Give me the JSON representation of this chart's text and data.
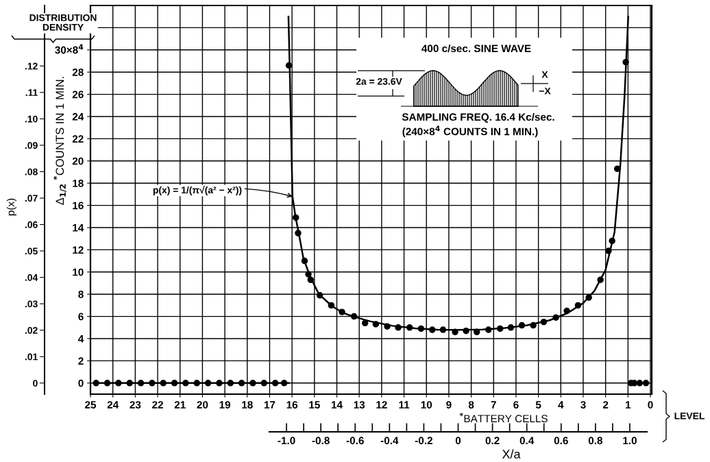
{
  "chart_data": {
    "type": "scatter",
    "xlabel": "$^{*}$BATTERY CELLS",
    "ylabel": "Δ$_{1/2}$ $^{*}$COUNTS IN 1 MIN.",
    "y2label": "p(x)",
    "x2label": "X/a",
    "xlim": [
      25,
      -0.06
    ],
    "xticks": [
      25,
      24,
      23,
      22,
      21,
      20,
      19,
      18,
      17,
      16,
      15,
      14,
      13,
      12,
      11,
      10,
      9,
      8,
      7,
      6,
      5,
      4,
      3,
      2,
      1,
      0
    ],
    "ylim": [
      -1,
      34
    ],
    "yticks": [
      0,
      2,
      4,
      6,
      8,
      10,
      12,
      14,
      16,
      18,
      20,
      22,
      24,
      26,
      28,
      {
        "value": 30,
        "label": "30×8$^{4}$"
      },
      {
        "value": 32,
        "label": null
      }
    ],
    "y2lim": [
      -0.0042,
      0.1429
    ],
    "y2ticks": [
      0,
      {
        "value": 0.01,
        "label": ".01"
      },
      {
        "value": 0.02,
        "label": ".02"
      },
      {
        "value": 0.03,
        "label": ".03"
      },
      {
        "value": 0.04,
        "label": ".04"
      },
      {
        "value": 0.05,
        "label": ".05"
      },
      {
        "value": 0.06,
        "label": ".06"
      },
      {
        "value": 0.07,
        "label": ".07"
      },
      {
        "value": 0.08,
        "label": ".08"
      },
      {
        "value": 0.09,
        "label": ".09"
      },
      {
        "value": 0.1,
        "label": ".10"
      },
      {
        "value": 0.11,
        "label": ".11"
      },
      {
        "value": 0.12,
        "label": ".12"
      }
    ],
    "x2lim": [
      -1.1,
      1.1
    ],
    "x2ticks": [
      {
        "value": -1.0,
        "label": "-1.0"
      },
      {
        "value": -0.8,
        "label": "-0.8"
      },
      {
        "value": -0.6,
        "label": "-0.6"
      },
      {
        "value": -0.4,
        "label": "-0.4"
      },
      {
        "value": -0.2,
        "label": "-0.2"
      },
      0,
      {
        "value": 0.2,
        "label": "0.2"
      },
      {
        "value": 0.4,
        "label": "0.4"
      },
      {
        "value": 0.6,
        "label": "0.6"
      },
      {
        "value": 0.8,
        "label": "0.8"
      },
      {
        "value": 1.0,
        "label": "1.0"
      }
    ],
    "grid": true,
    "legend": false,
    "marker": "circle",
    "series": [
      {
        "color": "#000000",
        "x": [
          24.75,
          24.25,
          23.75,
          23.25,
          22.75,
          22.25,
          21.75,
          21.25,
          20.75,
          20.25,
          19.75,
          19.25,
          18.75,
          18.25,
          17.75,
          17.25,
          16.75,
          16.35,
          16.14,
          15.83,
          15.73,
          15.44,
          15.27,
          15.17,
          14.76,
          14.25,
          13.77,
          13.23,
          12.74,
          12.26,
          11.75,
          11.26,
          10.75,
          10.24,
          9.74,
          9.26,
          8.72,
          8.23,
          7.75,
          7.23,
          6.71,
          6.23,
          5.74,
          5.23,
          4.76,
          4.22,
          3.73,
          3.23,
          2.75,
          2.23,
          1.87,
          1.71,
          1.48,
          1.1,
          0.87,
          0.72,
          0.48,
          0.2
        ],
        "values": [
          0,
          0,
          0,
          0,
          0,
          0,
          0,
          0,
          0,
          0,
          0,
          0,
          0,
          0,
          0,
          0,
          0,
          0,
          28.6,
          14.9,
          13.5,
          11.0,
          9.8,
          9.3,
          7.9,
          7.0,
          6.4,
          6.0,
          5.4,
          5.3,
          5.1,
          5.0,
          5.0,
          4.9,
          4.8,
          4.8,
          4.6,
          4.7,
          4.6,
          4.8,
          4.9,
          5.0,
          5.2,
          5.2,
          5.5,
          5.9,
          6.5,
          7.0,
          7.7,
          9.3,
          11.9,
          12.8,
          19.3,
          28.9,
          0,
          0,
          0,
          0
        ]
      },
      {
        "type": "line",
        "color": "#000000",
        "marker": "none",
        "x": [
          16.16,
          16.1,
          15.98,
          15.85,
          15.7,
          15.5,
          15.2,
          14.8,
          14.2,
          13.7,
          13.2,
          12.5,
          11.5,
          10.5,
          9.5,
          8.6,
          7.5,
          6.5,
          5.5,
          4.5,
          3.7,
          3.0,
          2.5,
          2.0,
          1.6,
          1.34,
          1.15,
          0.99
        ],
        "values": [
          33,
          28,
          16.8,
          15,
          13.5,
          11.3,
          9.6,
          8.0,
          6.9,
          6.3,
          5.95,
          5.55,
          5.15,
          4.92,
          4.8,
          4.78,
          4.82,
          4.95,
          5.2,
          5.65,
          6.3,
          7.2,
          8.3,
          10.2,
          13.6,
          19.7,
          26,
          33
        ]
      },
      {
        "type": "line",
        "color": "#000000",
        "marker": "none",
        "x": [
          24.85,
          16.15
        ],
        "values": [
          0,
          0
        ]
      }
    ],
    "annotations": [
      "DISTRIBUTION\nDENSITY",
      "400 c/sec. SINE WAVE",
      "2a = 23.6V",
      "X",
      "−X",
      "SAMPLING FREQ. 16.4 Kc/sec.",
      "(240×8$^{4}$ COUNTS IN 1 MIN.)",
      "LEVEL",
      {
        "text": "p(x) = 1/(π√(a² − x²))",
        "x": 15.98,
        "y": 16.8
      }
    ]
  }
}
